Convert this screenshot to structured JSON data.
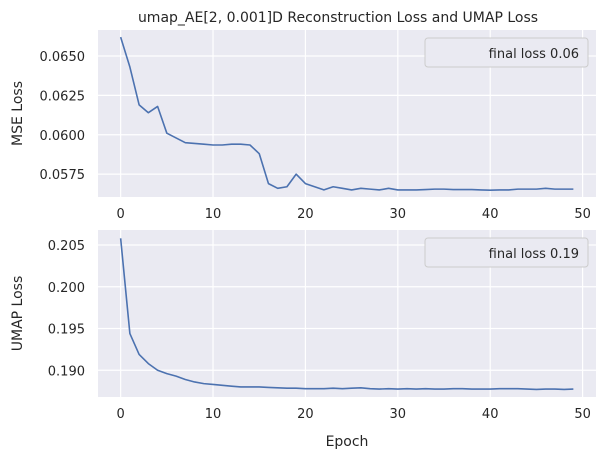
{
  "title": "umap_AE[2, 0.001]D Reconstruction Loss and UMAP Loss",
  "colors": {
    "panel_bg": "#eaeaf2",
    "grid": "#ffffff",
    "line": "#4c72b0",
    "legend_bg": "#eaeaf2",
    "legend_border": "#cccccc"
  },
  "chart_data": [
    {
      "type": "line",
      "title": "umap_AE[2, 0.001]D Reconstruction Loss and UMAP Loss",
      "xlabel": "",
      "ylabel": "MSE Loss",
      "xlim": [
        -2.45,
        51.45
      ],
      "ylim": [
        0.05605,
        0.06665
      ],
      "xticks": [
        0,
        10,
        20,
        30,
        40,
        50
      ],
      "xtick_labels": [
        "0",
        "10",
        "20",
        "30",
        "40",
        "50"
      ],
      "yticks": [
        0.0575,
        0.06,
        0.0625,
        0.065
      ],
      "ytick_labels": [
        "0.0575",
        "0.0600",
        "0.0625",
        "0.0650"
      ],
      "grid": true,
      "legend": {
        "position": "top-right",
        "entries": [
          "final loss 0.06"
        ]
      },
      "series": [
        {
          "x": [
            0,
            1,
            2,
            3,
            4,
            5,
            6,
            7,
            8,
            9,
            10,
            11,
            12,
            13,
            14,
            15,
            16,
            17,
            18,
            19,
            20,
            21,
            22,
            23,
            24,
            25,
            26,
            27,
            28,
            29,
            30,
            31,
            32,
            33,
            34,
            35,
            36,
            37,
            38,
            39,
            40,
            41,
            42,
            43,
            44,
            45,
            46,
            47,
            48,
            49
          ],
          "values": [
            0.0662,
            0.0643,
            0.0619,
            0.0614,
            0.0618,
            0.0601,
            0.0598,
            0.0595,
            0.05945,
            0.0594,
            0.05935,
            0.05935,
            0.0594,
            0.0594,
            0.05935,
            0.0588,
            0.0569,
            0.0566,
            0.0567,
            0.0575,
            0.0569,
            0.0567,
            0.0565,
            0.0567,
            0.0566,
            0.0565,
            0.0566,
            0.05655,
            0.0565,
            0.0566,
            0.0565,
            0.0565,
            0.0565,
            0.05652,
            0.05655,
            0.05655,
            0.05652,
            0.05652,
            0.05652,
            0.0565,
            0.05648,
            0.0565,
            0.0565,
            0.05655,
            0.05655,
            0.05655,
            0.0566,
            0.05655,
            0.05655,
            0.05655
          ]
        }
      ]
    },
    {
      "type": "line",
      "title": "",
      "xlabel": "Epoch",
      "ylabel": "UMAP Loss",
      "xlim": [
        -2.45,
        51.45
      ],
      "ylim": [
        0.1868,
        0.2068
      ],
      "xticks": [
        0,
        10,
        20,
        30,
        40,
        50
      ],
      "xtick_labels": [
        "0",
        "10",
        "20",
        "30",
        "40",
        "50"
      ],
      "yticks": [
        0.19,
        0.195,
        0.2,
        0.205
      ],
      "ytick_labels": [
        "0.190",
        "0.195",
        "0.200",
        "0.205"
      ],
      "grid": true,
      "legend": {
        "position": "top-right",
        "entries": [
          "final loss 0.19"
        ]
      },
      "series": [
        {
          "x": [
            0,
            1,
            2,
            3,
            4,
            5,
            6,
            7,
            8,
            9,
            10,
            11,
            12,
            13,
            14,
            15,
            16,
            17,
            18,
            19,
            20,
            21,
            22,
            23,
            24,
            25,
            26,
            27,
            28,
            29,
            30,
            31,
            32,
            33,
            34,
            35,
            36,
            37,
            38,
            39,
            40,
            41,
            42,
            43,
            44,
            45,
            46,
            47,
            48,
            49
          ],
          "values": [
            0.2058,
            0.1944,
            0.1919,
            0.1908,
            0.19,
            0.1896,
            0.1893,
            0.1889,
            0.1886,
            0.1884,
            0.1883,
            0.1882,
            0.1881,
            0.188,
            0.188,
            0.188,
            0.18795,
            0.1879,
            0.18785,
            0.18785,
            0.1878,
            0.1878,
            0.1878,
            0.18785,
            0.1878,
            0.18785,
            0.1879,
            0.1878,
            0.18775,
            0.1878,
            0.18775,
            0.1878,
            0.18775,
            0.1878,
            0.18775,
            0.18775,
            0.1878,
            0.1878,
            0.18775,
            0.18775,
            0.18775,
            0.1878,
            0.1878,
            0.1878,
            0.18775,
            0.1877,
            0.18775,
            0.18775,
            0.1877,
            0.18775
          ]
        }
      ]
    }
  ]
}
